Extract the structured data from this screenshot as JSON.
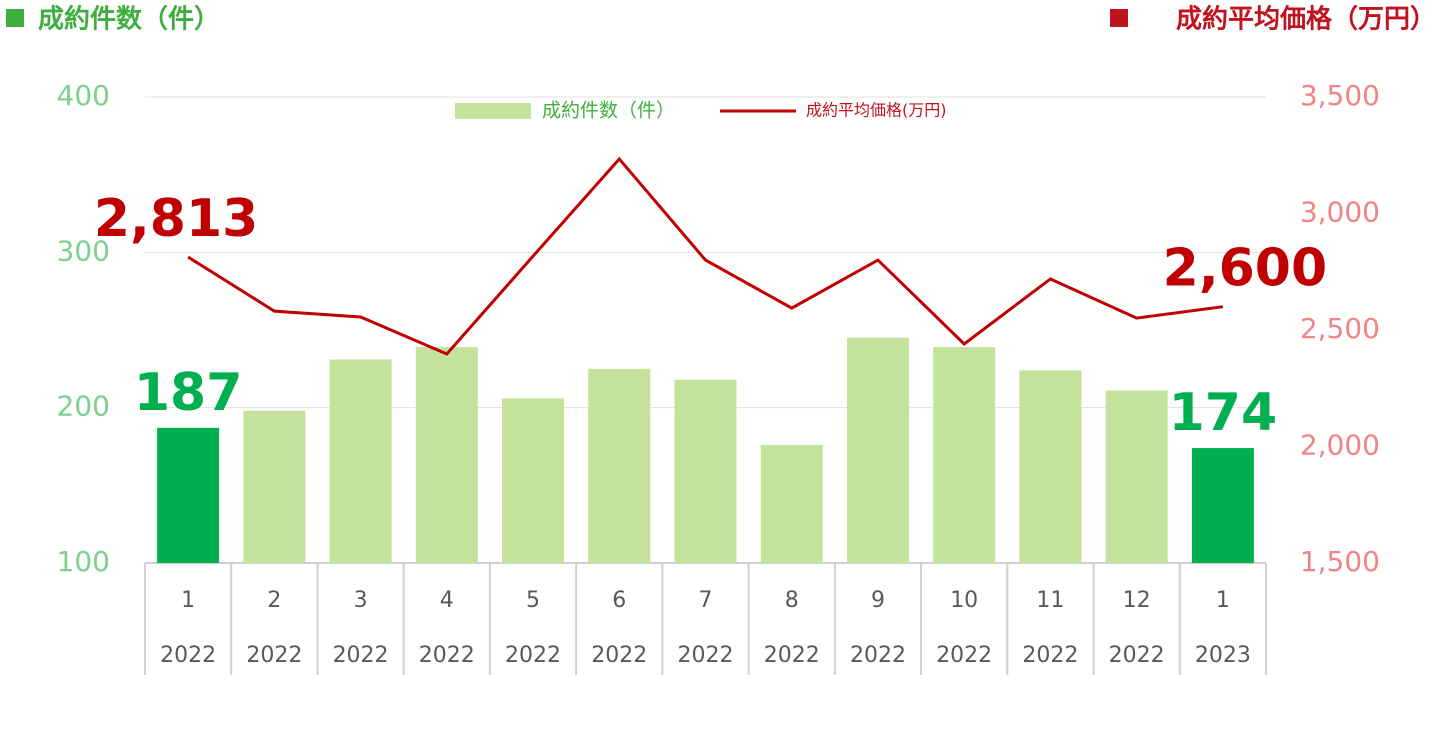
{
  "chart_data": {
    "type": "bar",
    "y_label": "成約件数（件）",
    "y2_label": "成約平均価格（万円）",
    "categories": [
      "1",
      "2",
      "3",
      "4",
      "5",
      "6",
      "7",
      "8",
      "9",
      "10",
      "11",
      "12",
      "1"
    ],
    "category_years": [
      "2022",
      "2022",
      "2022",
      "2022",
      "2022",
      "2022",
      "2022",
      "2022",
      "2022",
      "2022",
      "2022",
      "2022",
      "2023"
    ],
    "series": [
      {
        "name": "成約件数（件）",
        "type": "bar",
        "axis": "y",
        "color": "#c3e29b",
        "colors": [
          "#00b050",
          "#c3e29b",
          "#c3e29b",
          "#c3e29b",
          "#c3e29b",
          "#c3e29b",
          "#c3e29b",
          "#c3e29b",
          "#c3e29b",
          "#c3e29b",
          "#c3e29b",
          "#c3e29b",
          "#00b050"
        ],
        "values": [
          187,
          198,
          231,
          239,
          206,
          225,
          218,
          176,
          245,
          239,
          224,
          211,
          174
        ],
        "labeled": [
          true,
          false,
          false,
          false,
          false,
          false,
          false,
          false,
          false,
          false,
          false,
          false,
          true
        ]
      },
      {
        "name": "成約平均価格(万円)",
        "type": "line",
        "axis": "y2",
        "color": "#c00000",
        "values": [
          2813,
          2581,
          2556,
          2397,
          2817,
          3234,
          2800,
          2594,
          2800,
          2440,
          2719,
          2551,
          2600
        ],
        "value_labels": [
          "2,813",
          null,
          null,
          null,
          null,
          null,
          null,
          null,
          null,
          null,
          null,
          null,
          "2,600"
        ]
      }
    ],
    "ylim": [
      100,
      400
    ],
    "yticks": [
      100,
      200,
      300,
      400
    ],
    "y2lim": [
      1500,
      3500
    ],
    "y2ticks": [
      {
        "value": 1500,
        "label": "1,500"
      },
      {
        "value": 2000,
        "label": "2,000"
      },
      {
        "value": 2500,
        "label": "2,500"
      },
      {
        "value": 3000,
        "label": "3,000"
      },
      {
        "value": 3500,
        "label": "3,500"
      }
    ],
    "grid": true,
    "legend": "top"
  }
}
